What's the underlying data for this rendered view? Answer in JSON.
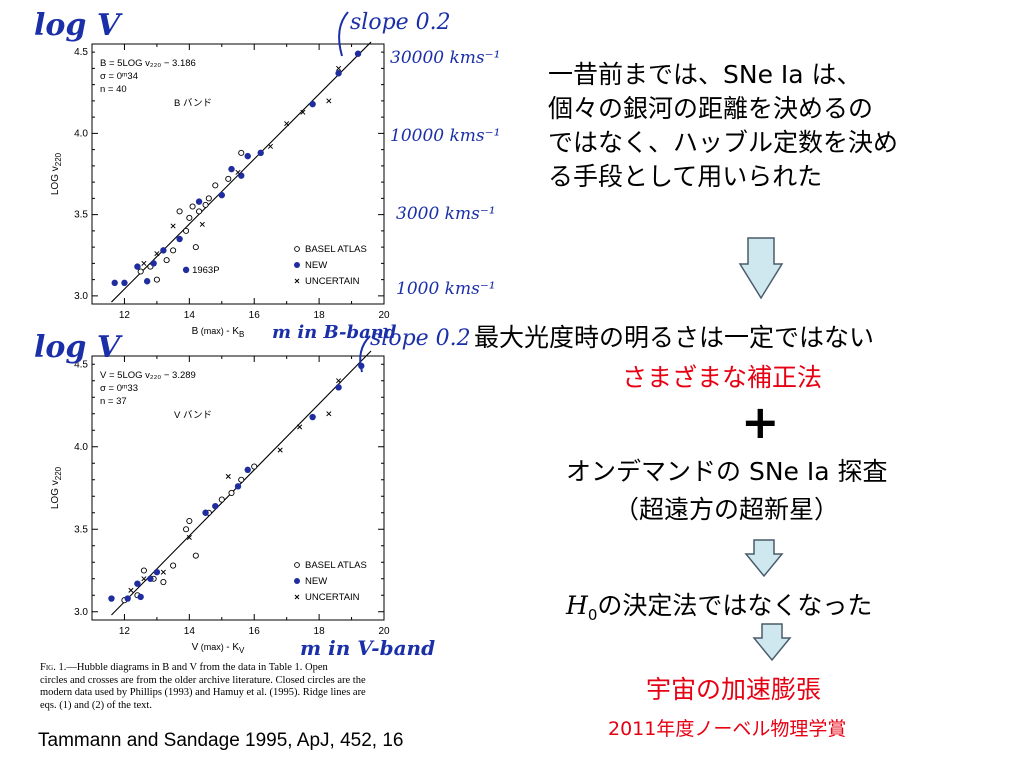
{
  "slide": {
    "right": {
      "intro_lines": [
        "一昔前までは、SNe Ia は、",
        "個々の銀河の距離を決めるの",
        "ではなく、ハッブル定数を決め",
        "る手段として用いられた"
      ],
      "statement": "最大光度時の明るさは一定ではない",
      "correction": "さまざまな補正法",
      "plus": "+",
      "survey": "オンデマンドの SNe Ia 探査",
      "survey_sub": "（超遠方の超新星）",
      "h0_symbol": "H",
      "h0_sub": "0",
      "h0_rest": "の決定法ではなくなった",
      "acceleration": "宇宙の加速膨張",
      "nobel": "2011年度ノーベル物理学賞"
    },
    "citation": "Tammann and Sandage 1995, ApJ, 452, 16",
    "caption": {
      "lead": "Fig. 1.",
      "lines": [
        "—Hubble diagrams in B and V from the data in Table 1. Open",
        "circles and crosses are from the older archive literature. Closed circles are the",
        "modern data used by Phillips (1993) and Hamuy et al. (1995). Ridge lines are",
        "eqs. (1) and (2) of the text."
      ]
    },
    "annotations": {
      "logv_top": "log V",
      "logv_bottom": "log V",
      "slope_top": "slope 0.2",
      "slope_bottom": "slope 0.2",
      "m_b": "m in B-band",
      "m_v": "m in V-band",
      "vel_labels": [
        "30000 kms⁻¹",
        "10000 kms⁻¹",
        "3000 kms⁻¹",
        "1000 kms⁻¹"
      ]
    },
    "colors": {
      "red": "#e60012",
      "handwriting": "#1a2fa8",
      "new_points": "#1f2d9e",
      "arrow_fill": "#cfe8ef",
      "arrow_stroke": "#4a5c6a"
    }
  },
  "chart_data": [
    {
      "type": "scatter",
      "band_label": "B バンド",
      "xlabel": "B",
      "xlabel_mid": "(max)",
      "xlabel_end": "- K",
      "xlabel_sub": "B",
      "ylabel": "LOG v",
      "ylabel_sub": "220",
      "xlim": [
        11,
        20
      ],
      "ylim": [
        2.95,
        4.55
      ],
      "xticks": [
        "12",
        "14",
        "16",
        "18",
        "20"
      ],
      "yticks": [
        "3.0",
        "3.5",
        "4.0",
        "4.5"
      ],
      "stats": [
        "B = 5LOG v₂₂₀ − 3.186",
        "σ = 0ᵐ34",
        "n = 40"
      ],
      "legend": [
        "BASEL ATLAS",
        "NEW",
        "UNCERTAIN"
      ],
      "point_label": {
        "text": "1963P",
        "x": 13.9,
        "y": 3.16
      },
      "ridge": {
        "x": [
          11.6,
          19.6
        ],
        "y": [
          2.962,
          4.562
        ]
      },
      "series": [
        {
          "name": "BASEL ATLAS",
          "points": [
            [
              12.5,
              3.15
            ],
            [
              12.8,
              3.18
            ],
            [
              13.0,
              3.1
            ],
            [
              13.3,
              3.22
            ],
            [
              13.5,
              3.28
            ],
            [
              13.9,
              3.4
            ],
            [
              14.0,
              3.48
            ],
            [
              14.1,
              3.55
            ],
            [
              14.3,
              3.52
            ],
            [
              14.5,
              3.56
            ],
            [
              14.6,
              3.6
            ],
            [
              14.8,
              3.68
            ],
            [
              15.2,
              3.72
            ],
            [
              15.6,
              3.88
            ],
            [
              13.7,
              3.52
            ],
            [
              14.2,
              3.3
            ]
          ]
        },
        {
          "name": "NEW",
          "points": [
            [
              11.7,
              3.08
            ],
            [
              12.0,
              3.08
            ],
            [
              12.4,
              3.18
            ],
            [
              12.7,
              3.09
            ],
            [
              12.9,
              3.2
            ],
            [
              13.2,
              3.28
            ],
            [
              13.7,
              3.35
            ],
            [
              14.3,
              3.58
            ],
            [
              15.0,
              3.62
            ],
            [
              15.3,
              3.78
            ],
            [
              15.6,
              3.74
            ],
            [
              15.8,
              3.86
            ],
            [
              16.2,
              3.88
            ],
            [
              17.8,
              4.18
            ],
            [
              18.6,
              4.37
            ],
            [
              19.2,
              4.49
            ],
            [
              13.9,
              3.16
            ]
          ]
        },
        {
          "name": "UNCERTAIN",
          "points": [
            [
              12.6,
              3.2
            ],
            [
              13.0,
              3.26
            ],
            [
              13.5,
              3.43
            ],
            [
              14.4,
              3.44
            ],
            [
              15.5,
              3.76
            ],
            [
              16.5,
              3.92
            ],
            [
              17.0,
              4.06
            ],
            [
              17.5,
              4.13
            ],
            [
              18.3,
              4.2
            ],
            [
              18.6,
              4.4
            ]
          ]
        }
      ]
    },
    {
      "type": "scatter",
      "band_label": "V バンド",
      "xlabel": "V",
      "xlabel_mid": "(max)",
      "xlabel_end": "- K",
      "xlabel_sub": "V",
      "ylabel": "LOG v",
      "ylabel_sub": "220",
      "xlim": [
        11,
        20
      ],
      "ylim": [
        2.95,
        4.55
      ],
      "xticks": [
        "12",
        "14",
        "16",
        "18",
        "20"
      ],
      "yticks": [
        "3.0",
        "3.5",
        "4.0",
        "4.5"
      ],
      "stats": [
        "V = 5LOG v₂₂₀ − 3.289",
        "σ = 0ᵐ33",
        "n = 37"
      ],
      "legend": [
        "BASEL ATLAS",
        "NEW",
        "UNCERTAIN"
      ],
      "ridge": {
        "x": [
          11.6,
          19.6
        ],
        "y": [
          2.98,
          4.58
        ]
      },
      "series": [
        {
          "name": "BASEL ATLAS",
          "points": [
            [
              12.0,
              3.07
            ],
            [
              12.4,
              3.1
            ],
            [
              12.6,
              3.25
            ],
            [
              12.9,
              3.2
            ],
            [
              13.5,
              3.28
            ],
            [
              13.9,
              3.5
            ],
            [
              14.0,
              3.55
            ],
            [
              14.2,
              3.34
            ],
            [
              14.6,
              3.6
            ],
            [
              15.0,
              3.68
            ],
            [
              15.3,
              3.72
            ],
            [
              15.6,
              3.8
            ],
            [
              16.0,
              3.88
            ],
            [
              13.2,
              3.18
            ]
          ]
        },
        {
          "name": "NEW",
          "points": [
            [
              11.6,
              3.08
            ],
            [
              12.1,
              3.08
            ],
            [
              12.4,
              3.17
            ],
            [
              12.5,
              3.09
            ],
            [
              12.8,
              3.2
            ],
            [
              13.0,
              3.24
            ],
            [
              14.5,
              3.6
            ],
            [
              14.8,
              3.64
            ],
            [
              15.5,
              3.76
            ],
            [
              15.8,
              3.86
            ],
            [
              17.8,
              4.18
            ],
            [
              18.6,
              4.36
            ],
            [
              19.3,
              4.49
            ]
          ]
        },
        {
          "name": "UNCERTAIN",
          "points": [
            [
              12.2,
              3.13
            ],
            [
              12.6,
              3.2
            ],
            [
              13.2,
              3.24
            ],
            [
              14.0,
              3.45
            ],
            [
              15.2,
              3.82
            ],
            [
              16.8,
              3.98
            ],
            [
              17.4,
              4.12
            ],
            [
              18.3,
              4.2
            ],
            [
              18.6,
              4.4
            ]
          ]
        }
      ]
    }
  ]
}
